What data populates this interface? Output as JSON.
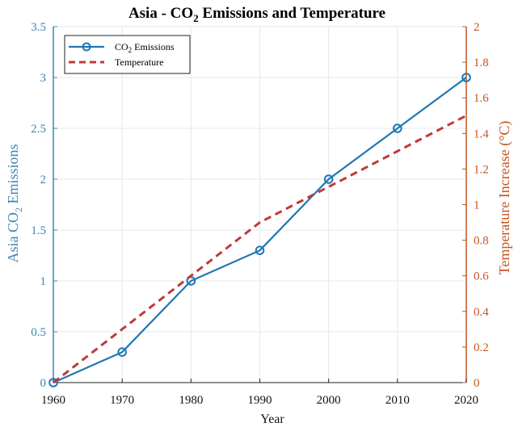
{
  "chart_data": {
    "type": "line",
    "title": "Asia - CO2 Emissions and Temperature",
    "title_parts": {
      "prefix": "Asia - CO",
      "sub": "2",
      "suffix": " Emissions and Temperature"
    },
    "xlabel": "Year",
    "ylabel_left": "Asia CO2 Emissions",
    "ylabel_left_parts": {
      "prefix": "Asia CO",
      "sub": "2",
      "suffix": " Emissions"
    },
    "ylabel_right": "Temperature Increase (°C)",
    "x": [
      1960,
      1970,
      1980,
      1990,
      2000,
      2010,
      2020
    ],
    "xlim": [
      1960,
      2020
    ],
    "xticks": [
      "1960",
      "1970",
      "1980",
      "1990",
      "2000",
      "2010",
      "2020"
    ],
    "ylim_left": [
      0,
      3.5
    ],
    "yticks_left": [
      "0",
      "0.5",
      "1",
      "1.5",
      "2",
      "2.5",
      "3",
      "3.5"
    ],
    "ylim_right": [
      0,
      2
    ],
    "yticks_right": [
      "0",
      "0.2",
      "0.4",
      "0.6",
      "0.8",
      "1",
      "1.2",
      "1.4",
      "1.6",
      "1.8",
      "2"
    ],
    "grid": true,
    "legend_position": "top-left",
    "series": [
      {
        "name": "CO2 Emissions",
        "name_parts": {
          "prefix": "CO",
          "sub": "2",
          "suffix": " Emissions"
        },
        "axis": "left",
        "style": "solid-circle-markers",
        "color": "#2077b4",
        "values": [
          0,
          0.3,
          1.0,
          1.3,
          2.0,
          2.5,
          3.0
        ]
      },
      {
        "name": "Temperature",
        "axis": "right",
        "style": "dashed",
        "color": "#c0393b",
        "values": [
          0,
          0.3,
          0.6,
          0.9,
          1.1,
          1.3,
          1.5
        ]
      }
    ],
    "colors": {
      "left_axis": "#3d86b0",
      "right_axis": "#c4551f",
      "grid": "#e3e8ec"
    }
  }
}
